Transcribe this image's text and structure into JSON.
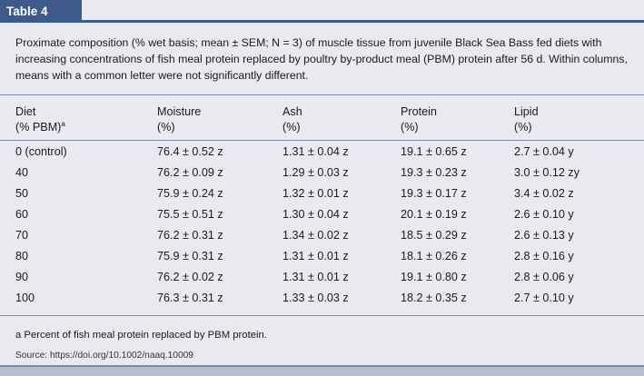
{
  "tab": {
    "label": "Table 4"
  },
  "caption": "Proximate composition (% wet basis; mean ± SEM; N = 3) of muscle tissue from juvenile Black Sea Bass fed diets with increasing concentrations of fish meal protein replaced by poultry by-product meal (PBM) protein after 56 d. Within columns, means with a common letter were not significantly different.",
  "columns": [
    {
      "line1": "Diet",
      "line2": "(% PBM)",
      "sup": "a"
    },
    {
      "line1": "Moisture",
      "line2": "(%)"
    },
    {
      "line1": "Ash",
      "line2": "(%)"
    },
    {
      "line1": "Protein",
      "line2": "(%)"
    },
    {
      "line1": "Lipid",
      "line2": "(%)"
    }
  ],
  "rows": [
    [
      "0 (control)",
      "76.4 ± 0.52 z",
      "1.31 ± 0.04 z",
      "19.1 ± 0.65 z",
      "2.7 ± 0.04 y"
    ],
    [
      "40",
      "76.2 ± 0.09 z",
      "1.29 ± 0.03 z",
      "19.3 ± 0.23 z",
      "3.0 ± 0.12 zy"
    ],
    [
      "50",
      "75.9 ± 0.24 z",
      "1.32 ± 0.01 z",
      "19.3 ± 0.17 z",
      "3.4 ± 0.02 z"
    ],
    [
      "60",
      "75.5 ± 0.51 z",
      "1.30 ± 0.04 z",
      "20.1 ± 0.19 z",
      "2.6 ± 0.10 y"
    ],
    [
      "70",
      "76.2 ± 0.31 z",
      "1.34 ± 0.02 z",
      "18.5 ± 0.29 z",
      "2.6 ± 0.13 y"
    ],
    [
      "80",
      "75.9 ± 0.31 z",
      "1.31 ± 0.01 z",
      "18.1 ± 0.26 z",
      "2.8 ± 0.16 y"
    ],
    [
      "90",
      "76.2 ± 0.02 z",
      "1.31 ± 0.01 z",
      "19.1 ± 0.80 z",
      "2.8 ± 0.06 y"
    ],
    [
      "100",
      "76.3 ± 0.31 z",
      "1.33 ± 0.03 z",
      "18.2 ± 0.35 z",
      "2.7 ± 0.10 y"
    ]
  ],
  "footnote": "a Percent of fish meal protein replaced by PBM protein.",
  "source": "Source: https://doi.org/10.1002/naaq.10009",
  "colors": {
    "accent": "#3d5a8a",
    "background": "#e8eaf0",
    "rule": "#7d8aa6"
  }
}
